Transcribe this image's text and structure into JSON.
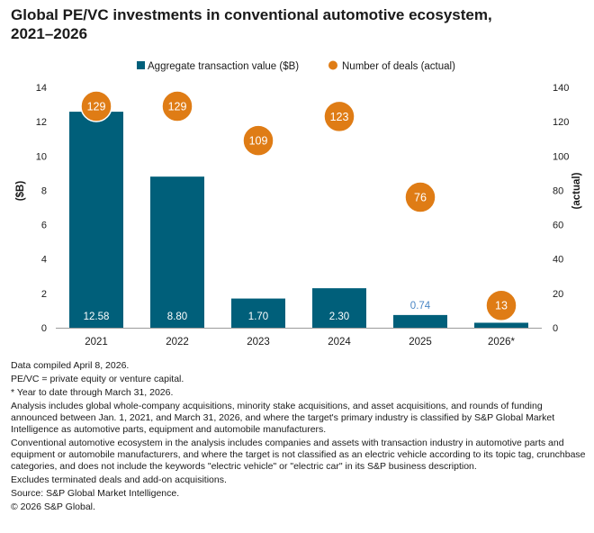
{
  "title_lines": [
    "Global PE/VC investments in conventional automotive ecosystem,",
    "2021–2026"
  ],
  "colors": {
    "bar": "#005f7a",
    "bubble": "#df7c15",
    "small_label": "#4a86c5",
    "axis": "#9a9a9a"
  },
  "chart_data": {
    "type": "bar",
    "categories": [
      "2021",
      "2022",
      "2023",
      "2024",
      "2025",
      "2026*"
    ],
    "series": [
      {
        "name": "Aggregate transaction value ($B)",
        "type": "bar",
        "axis": "left",
        "values": [
          12.58,
          8.8,
          1.7,
          2.3,
          0.74,
          0.29
        ],
        "labels": [
          "12.58",
          "8.80",
          "1.70",
          "2.30",
          "0.74",
          "0.29"
        ]
      },
      {
        "name": "Number of deals (actual)",
        "type": "scatter",
        "axis": "right",
        "values": [
          129,
          129,
          109,
          123,
          76,
          13
        ],
        "labels": [
          "129",
          "129",
          "109",
          "123",
          "76",
          "13"
        ]
      }
    ],
    "ylabel": "($B)",
    "y2label": "(actual)",
    "ylim": [
      0,
      14
    ],
    "y2lim": [
      0,
      140
    ],
    "yticks": [
      "0",
      "2",
      "4",
      "6",
      "8",
      "10",
      "12",
      "14"
    ],
    "y2ticks": [
      "0",
      "20",
      "40",
      "60",
      "80",
      "100",
      "120",
      "140"
    ],
    "legend_position": "top-center",
    "grid": false
  },
  "notes": [
    "Data compiled April 8, 2026.",
    "PE/VC = private equity or venture capital.",
    "* Year to date through March 31, 2026.",
    "Analysis includes global whole-company acquisitions, minority stake acquisitions, and asset acquisitions, and rounds of funding announced between Jan. 1, 2021, and March 31, 2026, and where the target's primary industry is classified by S&P Global Market Intelligence as automotive parts, equipment and automobile manufacturers.",
    "Conventional automotive ecosystem in the analysis includes companies and assets with transaction industry in automotive parts and equipment or automobile manufacturers, and where the target is not classified as an electric vehicle according to its topic tag, crunchbase categories, and does not include the keywords \"electric vehicle\" or \"electric car\" in its S&P business description.",
    "Excludes terminated deals and add-on acquisitions.",
    "Source: S&P Global Market Intelligence.",
    "© 2026 S&P Global."
  ]
}
